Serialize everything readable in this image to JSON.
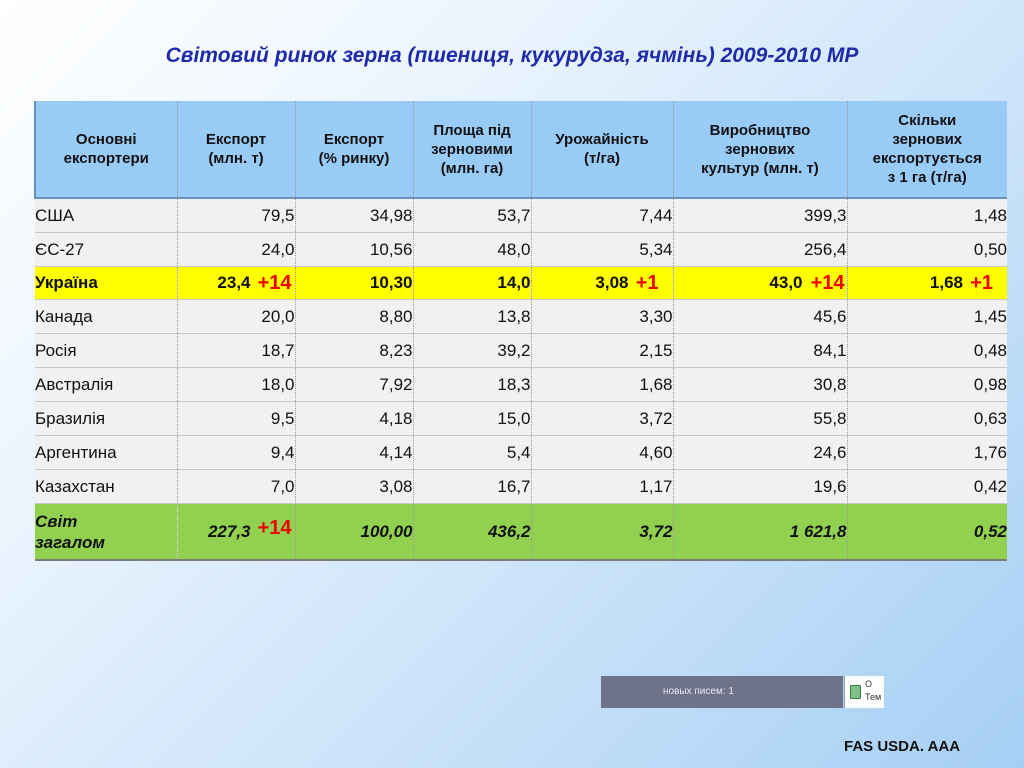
{
  "title": "Світовий ринок зерна (пшениця, кукурудза, ячмінь) 2009-2010 МР",
  "table": {
    "headers": [
      [
        "Основні",
        "експортери"
      ],
      [
        "Експорт",
        "(млн. т)"
      ],
      [
        "Експорт",
        "(% ринку)"
      ],
      [
        "Площа під",
        "зерновими",
        "(млн. га)"
      ],
      [
        "Урожайність",
        "(т/га)"
      ],
      [
        "Виробництво",
        "зернових",
        "культур  (млн. т)"
      ],
      [
        "Скільки",
        "зернових",
        "експортується",
        "з 1 га (т/га)"
      ]
    ],
    "rows": [
      {
        "country": "США",
        "export_mt": "79,5",
        "export_pct": "34,98",
        "area": "53,7",
        "yield": "7,44",
        "production": "399,3",
        "per_ha": "1,48"
      },
      {
        "country": "ЄС-27",
        "export_mt": "24,0",
        "export_pct": "10,56",
        "area": "48,0",
        "yield": "5,34",
        "production": "256,4",
        "per_ha": "0,50"
      },
      {
        "country": "Україна",
        "export_mt": "23,4",
        "export_pct": "10,30",
        "area": "14,0",
        "yield": "3,08",
        "production": "43,0",
        "per_ha": "1,68",
        "badge_export": "+14",
        "badge_yield": "+1",
        "badge_production": "+14",
        "badge_per_ha": "+1"
      },
      {
        "country": "Канада",
        "export_mt": "20,0",
        "export_pct": "8,80",
        "area": "13,8",
        "yield": "3,30",
        "production": "45,6",
        "per_ha": "1,45"
      },
      {
        "country": "Росія",
        "export_mt": "18,7",
        "export_pct": "8,23",
        "area": "39,2",
        "yield": "2,15",
        "production": "84,1",
        "per_ha": "0,48"
      },
      {
        "country": "Австралія",
        "export_mt": "18,0",
        "export_pct": "7,92",
        "area": "18,3",
        "yield": "1,68",
        "production": "30,8",
        "per_ha": "0,98"
      },
      {
        "country": "Бразилія",
        "export_mt": "9,5",
        "export_pct": "4,18",
        "area": "15,0",
        "yield": "3,72",
        "production": "55,8",
        "per_ha": "0,63"
      },
      {
        "country": "Аргентина",
        "export_mt": "9,4",
        "export_pct": "4,14",
        "area": "5,4",
        "yield": "4,60",
        "production": "24,6",
        "per_ha": "1,76"
      },
      {
        "country": "Казахстан",
        "export_mt": "7,0",
        "export_pct": "3,08",
        "area": "16,7",
        "yield": "1,17",
        "production": "19,6",
        "per_ha": "0,42"
      }
    ],
    "total": {
      "country_l1": "Світ",
      "country_l2": "загалом",
      "export_mt": "227,3",
      "badge_export": "+14",
      "export_pct": "100,00",
      "area": "436,2",
      "yield": "3,72",
      "production": "1 621,8",
      "per_ha": "0,52"
    }
  },
  "taskbar": {
    "text": "новых писем: 1",
    "tray_l1": "О",
    "tray_l2": "Тем"
  },
  "source": "FAS USDA. AAA",
  "colors": {
    "title": "#1e2aa8",
    "header_bg": "#99cbf7",
    "highlight_row": "#ffff00",
    "total_row": "#92d050",
    "badge": "#ee0000"
  }
}
